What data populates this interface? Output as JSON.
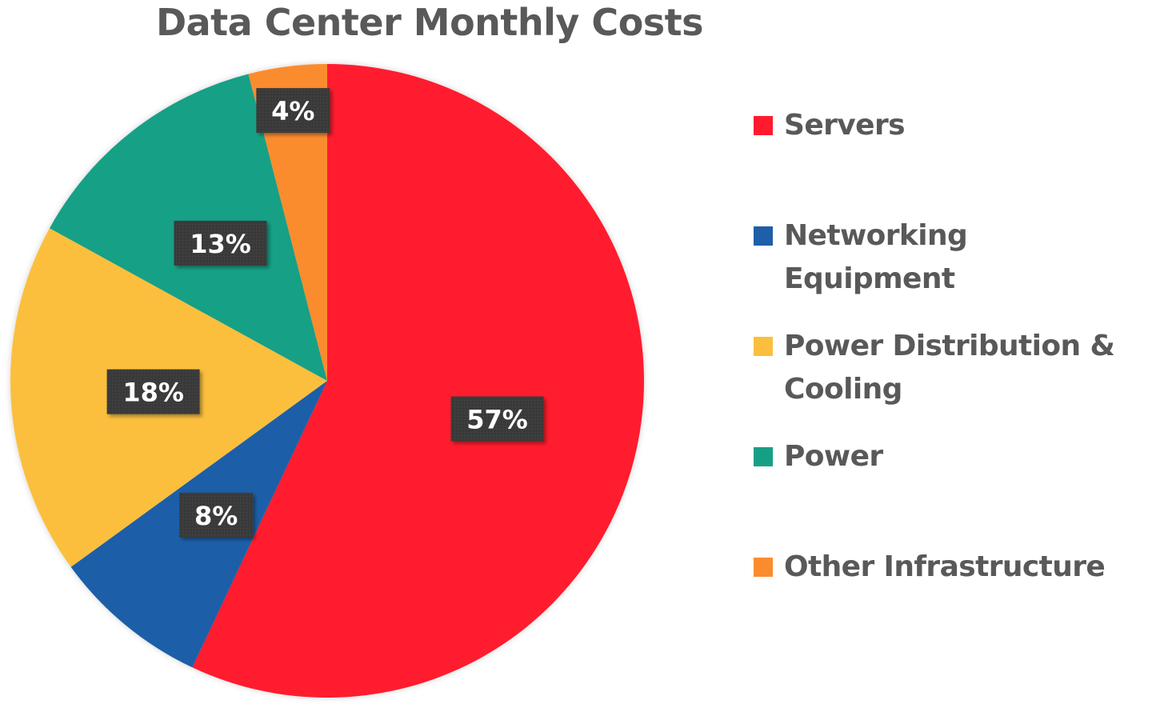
{
  "chart_data": {
    "type": "pie",
    "title": "Data Center Monthly Costs",
    "slices": [
      {
        "name": "Servers",
        "value": 57,
        "label": "57%",
        "color": "#ff1a2e"
      },
      {
        "name": "Networking Equipment",
        "value": 8,
        "label": "8%",
        "color": "#1f5ea8"
      },
      {
        "name": "Power Distribution & Cooling",
        "value": 18,
        "label": "18%",
        "color": "#fbbf3d"
      },
      {
        "name": "Power",
        "value": 13,
        "label": "13%",
        "color": "#15a086"
      },
      {
        "name": "Other Infrastructure",
        "value": 4,
        "label": "4%",
        "color": "#fb8c2e"
      }
    ],
    "legend_position": "right",
    "data_label_style": "dark boxes with white text"
  }
}
